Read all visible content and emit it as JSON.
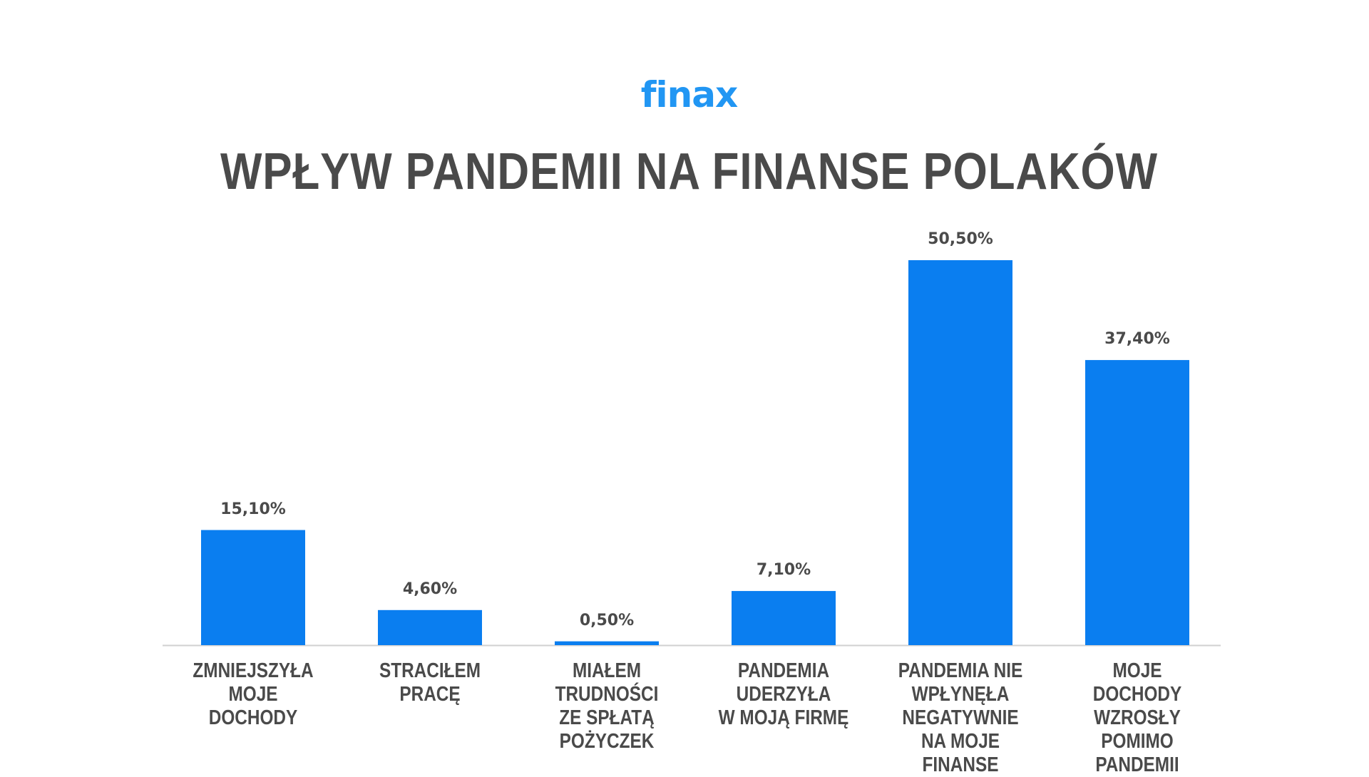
{
  "logo": "finax",
  "colors": {
    "bar": "#0a7ef0",
    "logo": "#2196f3",
    "text": "#4a4a4a",
    "axis": "#d0d0d0"
  },
  "chart_data": {
    "type": "bar",
    "title": "WPŁYW PANDEMII NA FINANSE POLAKÓW",
    "categories": [
      "ZMNIEJSZYŁA\nMOJE DOCHODY",
      "STRACIŁEM\nPRACĘ",
      "MIAŁEM\nTRUDNOŚCI\nZE SPŁATĄ\nPOŻYCZEK",
      "PANDEMIA\nUDERZYŁA\nW MOJĄ FIRMĘ",
      "PANDEMIA NIE\nWPŁYNĘŁA\nNEGATYWNIE\nNA MOJE FINANSE",
      "MOJE DOCHODY\nWZROSŁY\nPOMIMO\nPANDEMII"
    ],
    "values": [
      15.1,
      4.6,
      0.5,
      7.1,
      50.5,
      37.4
    ],
    "data_labels": [
      "15,10%",
      "4,60%",
      "0,50%",
      "7,10%",
      "50,50%",
      "37,40%"
    ],
    "xlabel": "",
    "ylabel": "",
    "ylim": [
      0,
      50.5
    ],
    "grid": false,
    "legend": "none"
  }
}
